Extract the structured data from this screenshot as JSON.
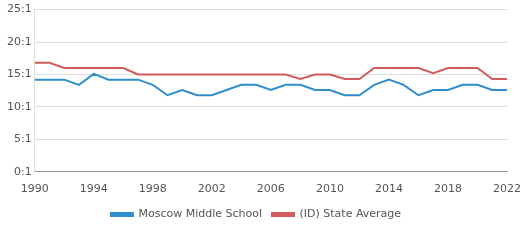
{
  "chart_data": {
    "type": "line",
    "x": [
      1990,
      1991,
      1992,
      1993,
      1994,
      1995,
      1996,
      1997,
      1998,
      1999,
      2000,
      2001,
      2002,
      2003,
      2004,
      2005,
      2006,
      2007,
      2008,
      2009,
      2010,
      2011,
      2012,
      2013,
      2014,
      2015,
      2016,
      2017,
      2018,
      2019,
      2020,
      2021,
      2022
    ],
    "series": [
      {
        "name": "Moscow Middle School",
        "color": "#2f8fcd",
        "values": [
          14.2,
          14.2,
          14.2,
          13.4,
          15.1,
          14.2,
          14.2,
          14.2,
          13.4,
          11.8,
          12.6,
          11.8,
          11.8,
          12.6,
          13.4,
          13.4,
          12.6,
          13.4,
          13.4,
          12.6,
          12.6,
          11.8,
          11.8,
          13.4,
          14.2,
          13.4,
          11.8,
          12.6,
          12.6,
          13.4,
          13.4,
          12.6,
          12.6
        ]
      },
      {
        "name": "(ID) State Average",
        "color": "#d05c5c",
        "values": [
          16.8,
          16.8,
          16,
          16,
          16,
          16,
          16,
          15,
          15,
          15,
          15,
          15,
          15,
          15,
          15,
          15,
          15,
          15,
          14.3,
          15,
          15,
          14.3,
          14.3,
          16,
          16,
          16,
          16,
          15.2,
          16,
          16,
          16,
          14.3,
          14.3
        ]
      }
    ],
    "xlim": [
      1990,
      2022
    ],
    "xticks": [
      1990,
      1994,
      1998,
      2002,
      2006,
      2010,
      2014,
      2018,
      2022
    ],
    "ylim": [
      0,
      25
    ],
    "yticks": [
      {
        "value": 0,
        "label": "0:1"
      },
      {
        "value": 5,
        "label": "5:1"
      },
      {
        "value": 10,
        "label": "10:1"
      },
      {
        "value": 15,
        "label": "15:1"
      },
      {
        "value": 20,
        "label": "20:1"
      },
      {
        "value": 25,
        "label": "25:1"
      }
    ],
    "grid": true,
    "legend": "bottom"
  }
}
